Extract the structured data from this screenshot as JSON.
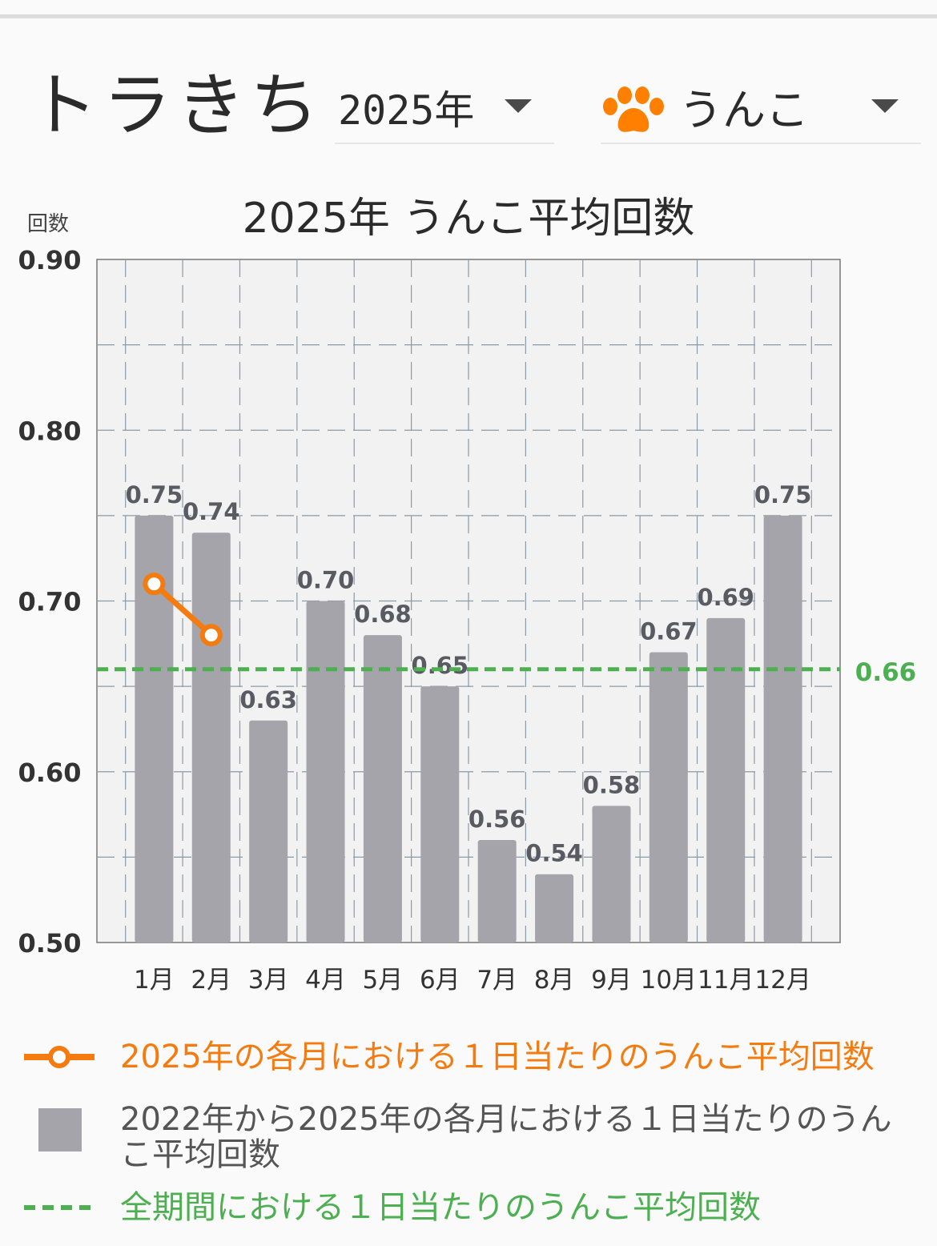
{
  "header": {
    "pet_name": "トラきち",
    "year_select": {
      "value": "2025年"
    },
    "type_select": {
      "value": "うんこ",
      "icon": "paw-icon",
      "icon_color": "#ff7f00"
    }
  },
  "colors": {
    "bar": "#a5a4aa",
    "line": "#f47b10",
    "average": "#4caf50",
    "plot_bg": "#f2f2f2"
  },
  "chart_data": {
    "type": "bar",
    "title": "2025年 うんこ平均回数",
    "ylabel": "回数",
    "xlabel": "",
    "ylim": [
      0.5,
      0.9
    ],
    "yticks": [
      "0.90",
      "0.80",
      "0.70",
      "0.60",
      "0.50"
    ],
    "grid": true,
    "categories": [
      "1月",
      "2月",
      "3月",
      "4月",
      "5月",
      "6月",
      "7月",
      "8月",
      "9月",
      "10月",
      "11月",
      "12月"
    ],
    "series": [
      {
        "name": "2022年から2025年の各月における１日当たりのうんこ平均回数",
        "kind": "bar",
        "values": [
          0.75,
          0.74,
          0.63,
          0.7,
          0.68,
          0.65,
          0.56,
          0.54,
          0.58,
          0.67,
          0.69,
          0.75
        ],
        "labels": [
          "0.75",
          "0.74",
          "0.63",
          "0.70",
          "0.68",
          "0.65",
          "0.56",
          "0.54",
          "0.58",
          "0.67",
          "0.69",
          "0.75"
        ]
      },
      {
        "name": "2025年の各月における１日当たりのうんこ平均回数",
        "kind": "line",
        "values": [
          0.71,
          0.68,
          null,
          null,
          null,
          null,
          null,
          null,
          null,
          null,
          null,
          null
        ]
      },
      {
        "name": "全期間における１日当たりのうんこ平均回数",
        "kind": "hline",
        "value": 0.66,
        "label": "0.66"
      }
    ]
  },
  "legend": {
    "current_year": "2025年の各月における１日当たりのうんこ平均回数",
    "multi_year": "2022年から2025年の各月における１日当たりのうんこ平均回数",
    "overall": "全期間における１日当たりのうんこ平均回数"
  }
}
